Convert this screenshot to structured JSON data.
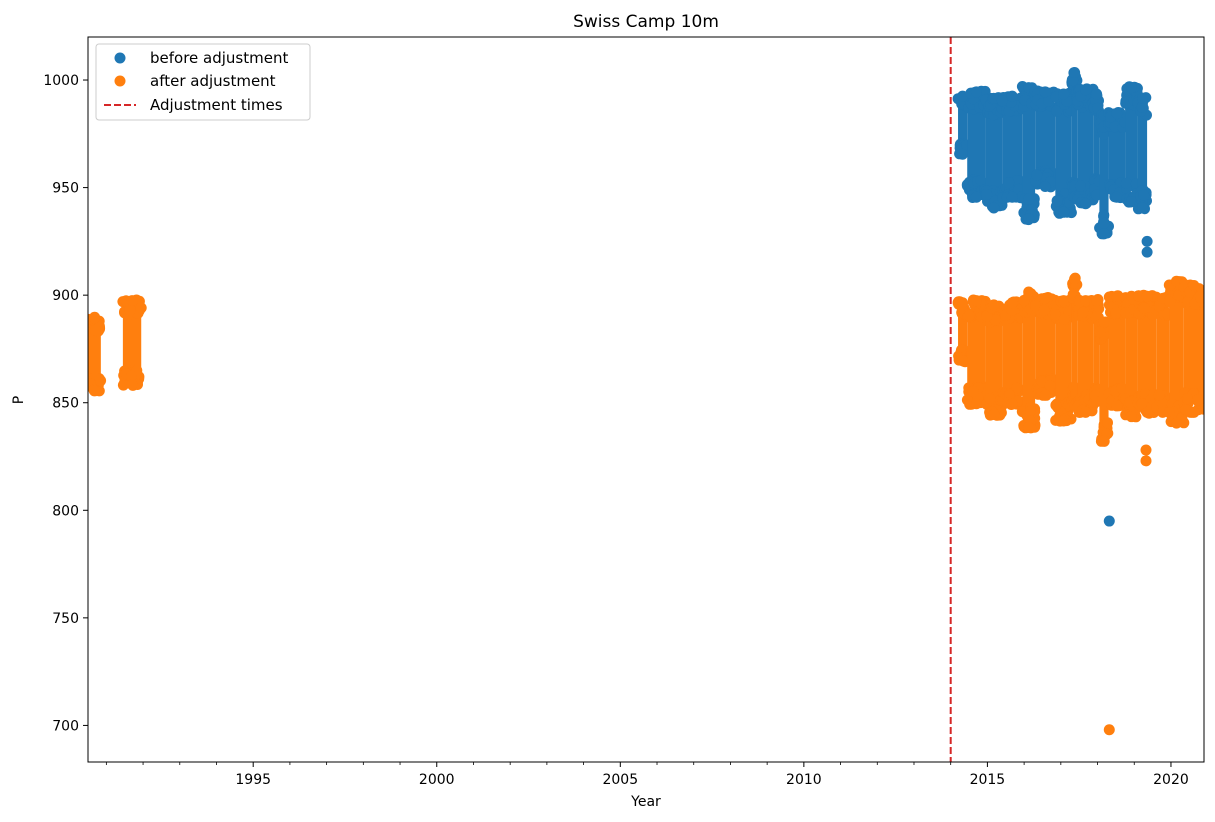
{
  "chart_data": {
    "type": "scatter",
    "title": "Swiss Camp 10m",
    "xlabel": "Year",
    "ylabel": "P",
    "xlim": [
      1990.5,
      2020.9
    ],
    "ylim": [
      683,
      1020
    ],
    "xticks": [
      1995,
      2000,
      2005,
      2010,
      2015,
      2020
    ],
    "yticks": [
      700,
      750,
      800,
      850,
      900,
      950,
      1000
    ],
    "grid": false,
    "legend_position": "top-left",
    "adjustment_times": [
      2014.0
    ],
    "colors": {
      "before": "#1f77b4",
      "after": "#ff7f0e",
      "adjustment": "#d62728"
    },
    "series": [
      {
        "name": "before adjustment",
        "color": "#1f77b4",
        "segments": [
          {
            "x": [
              2014.2,
              2014.45
            ],
            "y": [
              965,
              993
            ]
          },
          {
            "x": [
              2014.45,
              2014.95
            ],
            "y": [
              945,
              995
            ]
          },
          {
            "x": [
              2014.95,
              2015.4
            ],
            "y": [
              940,
              992
            ]
          },
          {
            "x": [
              2015.4,
              2015.95
            ],
            "y": [
              945,
              993
            ]
          },
          {
            "x": [
              2015.95,
              2016.3
            ],
            "y": [
              935,
              997
            ]
          },
          {
            "x": [
              2016.3,
              2016.85
            ],
            "y": [
              950,
              995
            ]
          },
          {
            "x": [
              2016.85,
              2017.3
            ],
            "y": [
              938,
              994
            ]
          },
          {
            "x": [
              2017.3,
              2017.45
            ],
            "y": [
              945,
              1004
            ]
          },
          {
            "x": [
              2017.45,
              2017.9
            ],
            "y": [
              942,
              996
            ]
          },
          {
            "x": [
              2017.9,
              2018.05
            ],
            "y": [
              946,
              994
            ]
          },
          {
            "x": [
              2018.05,
              2018.3
            ],
            "y": [
              928,
              984
            ]
          },
          {
            "x": [
              2018.3,
              2018.75
            ],
            "y": [
              945,
              985
            ]
          },
          {
            "x": [
              2018.75,
              2019.1
            ],
            "y": [
              943,
              997
            ]
          },
          {
            "x": [
              2019.1,
              2019.35
            ],
            "y": [
              940,
              992
            ]
          }
        ],
        "points": [
          {
            "x": 2019.35,
            "y": 925
          },
          {
            "x": 2019.35,
            "y": 920
          },
          {
            "x": 2018.32,
            "y": 795
          }
        ]
      },
      {
        "name": "after adjustment",
        "color": "#ff7f0e",
        "segments": [
          {
            "x": [
              1990.5,
              1990.85
            ],
            "y": [
              855,
              890
            ]
          },
          {
            "x": [
              1991.45,
              1991.95
            ],
            "y": [
              858,
              898
            ]
          },
          {
            "x": [
              2014.2,
              2014.45
            ],
            "y": [
              869,
              897
            ]
          },
          {
            "x": [
              2014.45,
              2014.95
            ],
            "y": [
              849,
              898
            ]
          },
          {
            "x": [
              2014.95,
              2015.4
            ],
            "y": [
              844,
              896
            ]
          },
          {
            "x": [
              2015.4,
              2015.95
            ],
            "y": [
              849,
              897
            ]
          },
          {
            "x": [
              2015.95,
              2016.3
            ],
            "y": [
              838,
              902
            ]
          },
          {
            "x": [
              2016.3,
              2016.85
            ],
            "y": [
              853,
              899
            ]
          },
          {
            "x": [
              2016.85,
              2017.3
            ],
            "y": [
              841,
              898
            ]
          },
          {
            "x": [
              2017.3,
              2017.45
            ],
            "y": [
              848,
              908
            ]
          },
          {
            "x": [
              2017.45,
              2017.9
            ],
            "y": [
              845,
              898
            ]
          },
          {
            "x": [
              2017.9,
              2018.05
            ],
            "y": [
              850,
              898
            ]
          },
          {
            "x": [
              2018.05,
              2018.3
            ],
            "y": [
              832,
              888
            ]
          },
          {
            "x": [
              2018.3,
              2018.75
            ],
            "y": [
              848,
              900
            ]
          },
          {
            "x": [
              2018.75,
              2019.1
            ],
            "y": [
              843,
              900
            ]
          },
          {
            "x": [
              2019.1,
              2019.6
            ],
            "y": [
              845,
              900
            ]
          },
          {
            "x": [
              2019.6,
              2019.95
            ],
            "y": [
              845,
              899
            ]
          },
          {
            "x": [
              2019.95,
              2020.35
            ],
            "y": [
              840,
              907
            ]
          },
          {
            "x": [
              2020.35,
              2020.9
            ],
            "y": [
              845,
              905
            ]
          }
        ],
        "points": [
          {
            "x": 2019.32,
            "y": 828
          },
          {
            "x": 2019.32,
            "y": 823
          },
          {
            "x": 2018.32,
            "y": 698
          },
          {
            "x": 2020.9,
            "y": 847
          }
        ]
      },
      {
        "name": "Adjustment times",
        "color": "#d62728",
        "line_style": "dashed"
      }
    ]
  }
}
